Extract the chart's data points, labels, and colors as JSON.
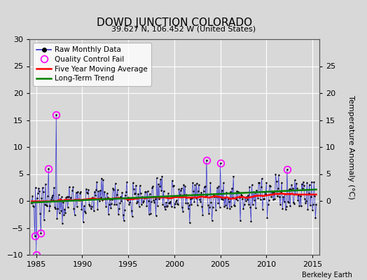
{
  "title": "DOWD JUNCTION COLORADO",
  "subtitle": "39.627 N, 106.452 W (United States)",
  "ylabel": "Temperature Anomaly (°C)",
  "xlim": [
    1984.25,
    2015.75
  ],
  "ylim": [
    -10,
    30
  ],
  "yticks_left": [
    -10,
    -5,
    0,
    5,
    10,
    15,
    20,
    25,
    30
  ],
  "yticks_right": [
    0,
    5,
    10,
    15,
    20,
    25
  ],
  "xticks": [
    1985,
    1990,
    1995,
    2000,
    2005,
    2010,
    2015
  ],
  "bg_color": "#d8d8d8",
  "plot_bg_color": "#d8d8d8",
  "grid_color": "white",
  "raw_line_color": "#3333cc",
  "raw_marker_color": "black",
  "qc_fail_color": "magenta",
  "moving_avg_color": "red",
  "trend_color": "green",
  "watermark": "Berkeley Earth",
  "seed": 12345,
  "n_months": 372,
  "start_decimal": 1984.5
}
